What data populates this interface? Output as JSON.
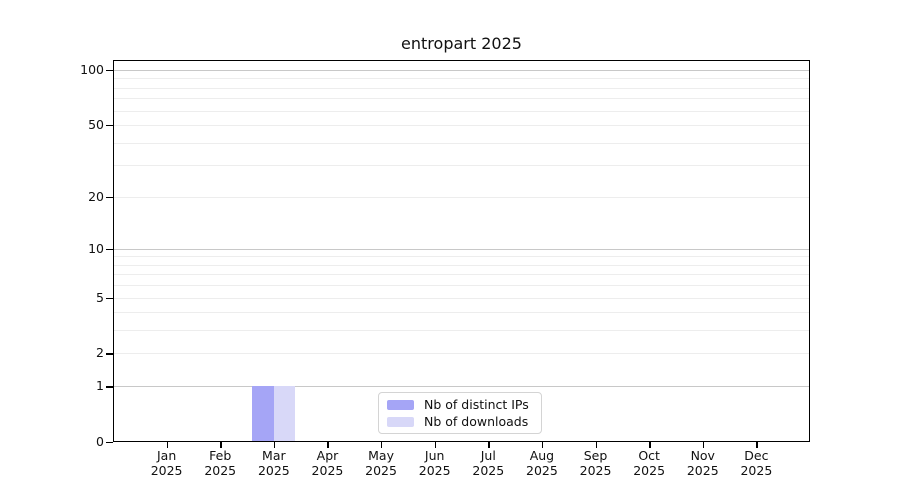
{
  "title": "entropart 2025",
  "chart_data": {
    "type": "bar",
    "title": "entropart 2025",
    "categories": [
      "Jan",
      "Feb",
      "Mar",
      "Apr",
      "May",
      "Jun",
      "Jul",
      "Aug",
      "Sep",
      "Oct",
      "Nov",
      "Dec"
    ],
    "category_year": "2025",
    "series": [
      {
        "name": "Nb of distinct IPs",
        "color": "#a5a5f6",
        "values": [
          0,
          0,
          1,
          0,
          0,
          0,
          0,
          0,
          0,
          0,
          0,
          0
        ]
      },
      {
        "name": "Nb of downloads",
        "color": "#d8d8f8",
        "values": [
          0,
          0,
          1,
          0,
          0,
          0,
          0,
          0,
          0,
          0,
          0,
          0
        ]
      }
    ],
    "xlabel": "",
    "ylabel": "",
    "y_scale": "log1p",
    "ylim": [
      0,
      113.3
    ],
    "y_ticks": [
      0,
      1,
      2,
      5,
      10,
      20,
      50,
      100
    ],
    "grid": true,
    "grid_major": [
      1,
      10,
      100
    ],
    "grid_minor": [
      2,
      3,
      4,
      5,
      6,
      7,
      8,
      9,
      20,
      30,
      40,
      50,
      60,
      70,
      80,
      90
    ],
    "legend_position": "bottom-center"
  },
  "colors": {
    "grid_major": "#c8c8c8",
    "grid_minor": "#ededed",
    "axis": "#000000",
    "legend_border": "#d4d4d4"
  }
}
